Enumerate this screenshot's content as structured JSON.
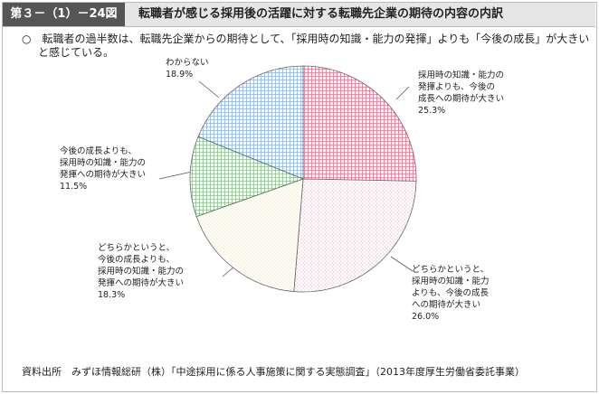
{
  "header": {
    "figure_number": "第３－（1）－24図",
    "title": "転職者が感じる採用後の活躍に対する転職先企業の期待の内容の内訳"
  },
  "summary": "○　転職者の過半数は、転職先企業からの期待として、「採用時の知識・能力の発揮」よりも「今後の成長」が大きいと感じている。",
  "chart_data": {
    "type": "pie",
    "categories": [
      "採用時の知識・能力の\n発揮よりも、今後の\n成長への期待が大きい",
      "どちらかというと、\n採用時の知識・能力\nよりも、今後の成長\nへの期待が大きい",
      "どちらかというと、\n今後の成長よりも、\n採用時の知識・能力の\n発揮への期待が大きい",
      "今後の成長よりも、\n採用時の知識・能力の\n発揮への期待が大きい",
      "わからない"
    ],
    "values": [
      25.3,
      26.0,
      18.3,
      11.5,
      18.9
    ],
    "value_labels": [
      "25.3%",
      "26.0%",
      "18.3%",
      "11.5%",
      "18.9%"
    ],
    "colors": [
      "#e8708a",
      "#e8a0b8",
      "#e8d890",
      "#8cc08c",
      "#8cb4e0"
    ]
  },
  "source": "資料出所　みずほ情報総研（株）「中途採用に係る人事施策に関する実態調査」（2013年度厚生労働省委託事業）"
}
